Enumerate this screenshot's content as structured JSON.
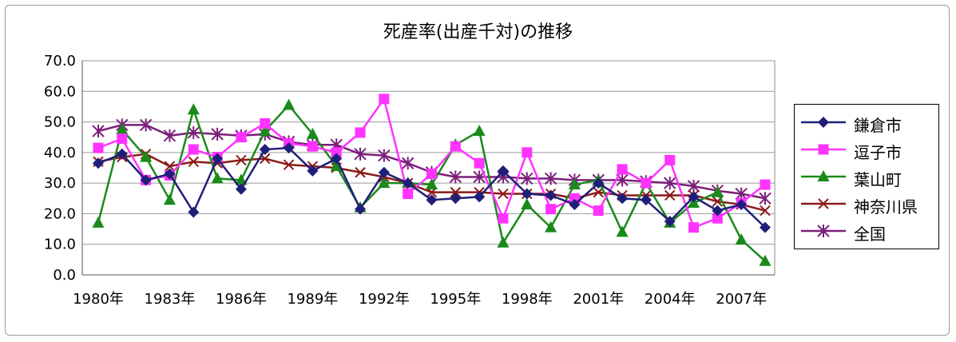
{
  "chart_data": {
    "type": "line",
    "title": "死産率(出産千対)の推移",
    "xlabel": "",
    "ylabel": "",
    "ylim": [
      0,
      70
    ],
    "yticks": [
      "0.0",
      "10.0",
      "20.0",
      "30.0",
      "40.0",
      "50.0",
      "60.0",
      "70.0"
    ],
    "x": [
      1980,
      1981,
      1982,
      1983,
      1984,
      1985,
      1986,
      1987,
      1988,
      1989,
      1990,
      1991,
      1992,
      1993,
      1994,
      1995,
      1996,
      1997,
      1998,
      1999,
      2000,
      2001,
      2002,
      2003,
      2004,
      2005,
      2006,
      2007,
      2008
    ],
    "xticks": [
      "1980年",
      "1983年",
      "1986年",
      "1989年",
      "1992年",
      "1995年",
      "1998年",
      "2001年",
      "2004年",
      "2007年"
    ],
    "grid": true,
    "legend_position": "right",
    "series": [
      {
        "name": "鎌倉市",
        "color": "#1f1f7a",
        "marker": "diamond",
        "values": [
          36.5,
          39.5,
          31.0,
          33.0,
          20.5,
          38.0,
          28.0,
          41.0,
          41.5,
          34.0,
          38.0,
          21.5,
          33.5,
          30.0,
          24.5,
          25.0,
          25.5,
          34.0,
          26.5,
          26.0,
          23.0,
          30.0,
          25.0,
          24.5,
          17.5,
          25.5,
          21.0,
          23.0,
          15.5
        ]
      },
      {
        "name": "逗子市",
        "color": "#ff33ff",
        "marker": "square",
        "values": [
          41.5,
          44.5,
          31.0,
          32.5,
          41.0,
          38.5,
          45.0,
          49.5,
          43.0,
          42.0,
          40.0,
          46.5,
          57.5,
          26.5,
          33.0,
          42.0,
          36.5,
          18.5,
          40.0,
          21.5,
          25.0,
          21.0,
          34.5,
          30.0,
          37.5,
          15.5,
          18.5,
          23.5,
          29.5
        ]
      },
      {
        "name": "葉山町",
        "color": "#1a8a1a",
        "marker": "triangle",
        "values": [
          17.0,
          47.5,
          38.5,
          24.5,
          54.0,
          31.5,
          31.0,
          47.0,
          55.5,
          46.0,
          35.5,
          22.0,
          30.0,
          30.0,
          29.5,
          42.5,
          47.0,
          10.5,
          23.0,
          15.5,
          29.5,
          31.0,
          14.0,
          30.0,
          17.0,
          23.5,
          27.0,
          11.5,
          4.5
        ]
      },
      {
        "name": "神奈川県",
        "color": "#8b1a1a",
        "marker": "x",
        "values": [
          37.0,
          38.5,
          39.5,
          35.5,
          37.0,
          36.5,
          37.5,
          38.0,
          36.0,
          35.5,
          35.0,
          33.5,
          32.0,
          30.0,
          27.0,
          27.0,
          27.0,
          26.5,
          26.5,
          26.5,
          25.0,
          27.0,
          26.0,
          26.0,
          26.0,
          26.0,
          24.0,
          23.0,
          21.0
        ]
      },
      {
        "name": "全国",
        "color": "#7a1f7a",
        "marker": "star",
        "values": [
          47.0,
          49.0,
          49.0,
          45.5,
          46.5,
          46.0,
          45.5,
          46.0,
          43.5,
          42.5,
          42.5,
          39.5,
          39.0,
          36.5,
          33.5,
          32.0,
          32.0,
          32.0,
          31.5,
          31.5,
          31.0,
          31.0,
          31.0,
          30.5,
          30.0,
          29.0,
          27.5,
          26.5,
          25.0
        ]
      }
    ]
  }
}
